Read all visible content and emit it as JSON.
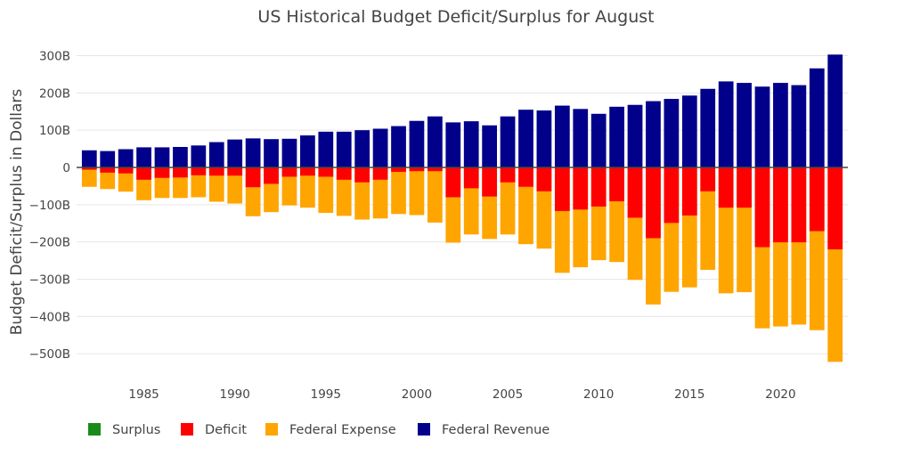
{
  "chart_data": {
    "type": "bar",
    "barmode": "overlay",
    "title": "US Historical Budget Deficit/Surplus for August",
    "ylabel": "Budget Deficit/Surplus in Dollars",
    "xlabel": "",
    "xlim": [
      1981.3,
      2023.7
    ],
    "ylim": [
      -550,
      330
    ],
    "grid": true,
    "legend_position": "bottom-left",
    "y_ticks": [
      {
        "value": 300,
        "label": "300B"
      },
      {
        "value": 200,
        "label": "200B"
      },
      {
        "value": 100,
        "label": "100B"
      },
      {
        "value": 0,
        "label": "0"
      },
      {
        "value": -100,
        "label": "−100B"
      },
      {
        "value": -200,
        "label": "−200B"
      },
      {
        "value": -300,
        "label": "−300B"
      },
      {
        "value": -400,
        "label": "−400B"
      },
      {
        "value": -500,
        "label": "−500B"
      }
    ],
    "x_ticks": [
      {
        "value": 1985,
        "label": "1985"
      },
      {
        "value": 1990,
        "label": "1990"
      },
      {
        "value": 1995,
        "label": "1995"
      },
      {
        "value": 2000,
        "label": "2000"
      },
      {
        "value": 2005,
        "label": "2005"
      },
      {
        "value": 2010,
        "label": "2010"
      },
      {
        "value": 2015,
        "label": "2015"
      },
      {
        "value": 2020,
        "label": "2020"
      }
    ],
    "years": [
      1982,
      1983,
      1984,
      1985,
      1986,
      1987,
      1988,
      1989,
      1990,
      1991,
      1992,
      1993,
      1994,
      1995,
      1996,
      1997,
      1998,
      1999,
      2000,
      2001,
      2002,
      2003,
      2004,
      2005,
      2006,
      2007,
      2008,
      2009,
      2010,
      2011,
      2012,
      2013,
      2014,
      2015,
      2016,
      2017,
      2018,
      2019,
      2020,
      2021,
      2022,
      2023
    ],
    "series": [
      {
        "name": "Surplus",
        "color": "#1a8a1a",
        "values": [
          0,
          0,
          0,
          0,
          0,
          0,
          0,
          0,
          0,
          0,
          0,
          0,
          0,
          0,
          0,
          0,
          0,
          0,
          0,
          0,
          0,
          0,
          0,
          0,
          0,
          0,
          0,
          0,
          0,
          0,
          0,
          0,
          0,
          0,
          0,
          0,
          0,
          0,
          0,
          0,
          0,
          0
        ]
      },
      {
        "name": "Federal Expense",
        "color": "#ffa500",
        "values": [
          -52,
          -58,
          -65,
          -88,
          -82,
          -82,
          -80,
          -92,
          -97,
          -131,
          -120,
          -102,
          -108,
          -122,
          -130,
          -140,
          -137,
          -125,
          -128,
          -148,
          -202,
          -180,
          -192,
          -180,
          -206,
          -218,
          -283,
          -268,
          -249,
          -254,
          -302,
          -368,
          -334,
          -322,
          -275,
          -338,
          -335,
          -432,
          -427,
          -422,
          -437,
          -522
        ]
      },
      {
        "name": "Deficit",
        "color": "#ff0000",
        "values": [
          -6,
          -14,
          -16,
          -33,
          -28,
          -27,
          -21,
          -22,
          -22,
          -53,
          -44,
          -25,
          -22,
          -25,
          -33,
          -40,
          -33,
          -12,
          -10,
          -10,
          -80,
          -56,
          -78,
          -40,
          -52,
          -64,
          -117,
          -113,
          -105,
          -91,
          -135,
          -190,
          -149,
          -129,
          -64,
          -108,
          -108,
          -214,
          -201,
          -201,
          -171,
          -220
        ]
      },
      {
        "name": "Federal Revenue",
        "color": "#00008b",
        "values": [
          46,
          44,
          49,
          54,
          54,
          55,
          59,
          68,
          75,
          78,
          76,
          77,
          86,
          96,
          96,
          100,
          104,
          111,
          125,
          137,
          121,
          124,
          113,
          137,
          155,
          153,
          166,
          157,
          144,
          163,
          168,
          178,
          184,
          193,
          211,
          231,
          227,
          217,
          227,
          221,
          266,
          303
        ]
      }
    ],
    "legend_order": [
      "Surplus",
      "Deficit",
      "Federal Expense",
      "Federal Revenue"
    ]
  }
}
